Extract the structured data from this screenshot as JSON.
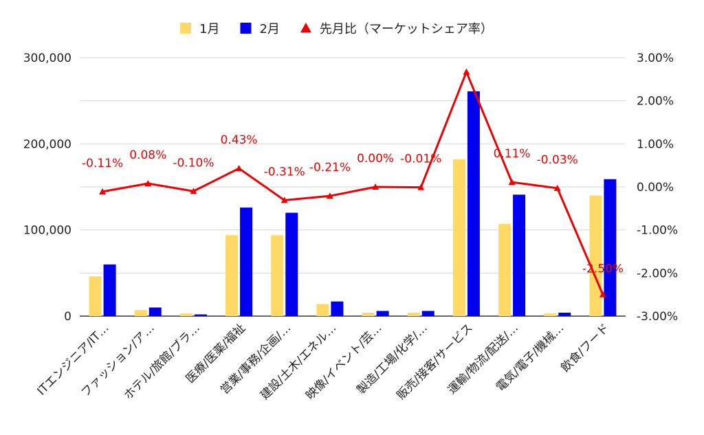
{
  "chart_data": {
    "type": "bar",
    "categories": [
      "ITエンジニア/IT…",
      "ファッション/ア…",
      "ホテル/旅館/ブラ…",
      "医療/医薬/福祉",
      "営業/事務/企画/…",
      "建設/土木/エネル…",
      "映像/イベント/芸…",
      "製造/工場/化学/…",
      "販売/接客/サービス",
      "運輸/物流/配送/…",
      "電気/電子/機械…",
      "飲食/フード"
    ],
    "series": [
      {
        "name": "1月",
        "type": "bar",
        "axis": "left",
        "color": "#ffd966",
        "values": [
          46000,
          7000,
          3000,
          94000,
          94000,
          14000,
          4000,
          4000,
          182000,
          107000,
          3000,
          140000
        ]
      },
      {
        "name": "2月",
        "type": "bar",
        "axis": "left",
        "color": "#0000ee",
        "values": [
          60000,
          10000,
          2000,
          126000,
          120000,
          17000,
          6000,
          6000,
          261000,
          141000,
          4000,
          159000
        ]
      },
      {
        "name": "先月比（マーケットシェア率）",
        "type": "line",
        "axis": "right",
        "color": "#ee0000",
        "values": [
          -0.11,
          0.08,
          -0.1,
          0.43,
          -0.31,
          -0.21,
          0.0,
          -0.01,
          2.67,
          0.11,
          -0.03,
          -2.5
        ],
        "labels": [
          "-0.11%",
          "0.08%",
          "-0.10%",
          "0.43%",
          "-0.31%",
          "-0.21%",
          "0.00%",
          "-0.01%",
          "",
          "0.11%",
          "-0.03%",
          "-2.50%"
        ]
      }
    ],
    "left_axis": {
      "ylim": [
        0,
        300000
      ],
      "ticks": [
        "0",
        "100,000",
        "200,000",
        "300,000"
      ]
    },
    "right_axis": {
      "ylim": [
        -3,
        3
      ],
      "ticks": [
        "-3.00%",
        "-2.00%",
        "-1.00%",
        "0.00%",
        "1.00%",
        "2.00%",
        "3.00%"
      ]
    },
    "legend_position": "top-center",
    "grid": true
  }
}
